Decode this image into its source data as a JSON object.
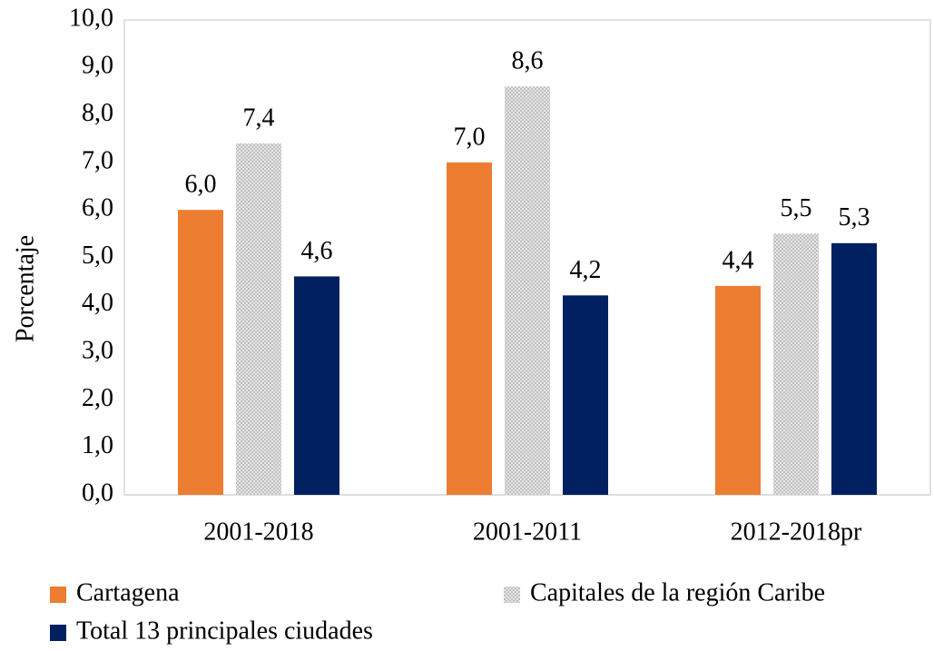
{
  "chart_data": {
    "type": "bar",
    "y_label": "Porcentaje",
    "categories": [
      "2001-2018",
      "2001-2011",
      "2012-2018pr"
    ],
    "series": [
      {
        "name": "Cartagena",
        "color": "#ed7d31",
        "values": [
          6.0,
          7.0,
          4.4
        ],
        "value_labels": [
          "6,0",
          "7,0",
          "4,4"
        ]
      },
      {
        "name": "Capitales de la región Caribe",
        "color": "#bfbfbf",
        "pattern": "crosshatch",
        "values": [
          7.4,
          8.6,
          5.5
        ],
        "value_labels": [
          "7,4",
          "8,6",
          "5,5"
        ]
      },
      {
        "name": "Total 13 principales ciudades",
        "color": "#002060",
        "values": [
          4.6,
          4.2,
          5.3
        ],
        "value_labels": [
          "4,6",
          "4,2",
          "5,3"
        ]
      }
    ],
    "ylim": [
      0,
      10
    ],
    "yticks": [
      {
        "value": 0,
        "label": "0,0"
      },
      {
        "value": 1,
        "label": "1,0"
      },
      {
        "value": 2,
        "label": "2,0"
      },
      {
        "value": 3,
        "label": "3,0"
      },
      {
        "value": 4,
        "label": "4,0"
      },
      {
        "value": 5,
        "label": "5,0"
      },
      {
        "value": 6,
        "label": "6,0"
      },
      {
        "value": 7,
        "label": "7,0"
      },
      {
        "value": 8,
        "label": "8,0"
      },
      {
        "value": 9,
        "label": "9,0"
      },
      {
        "value": 10,
        "label": "10,0"
      }
    ],
    "grid": false,
    "legend": "bottom"
  }
}
